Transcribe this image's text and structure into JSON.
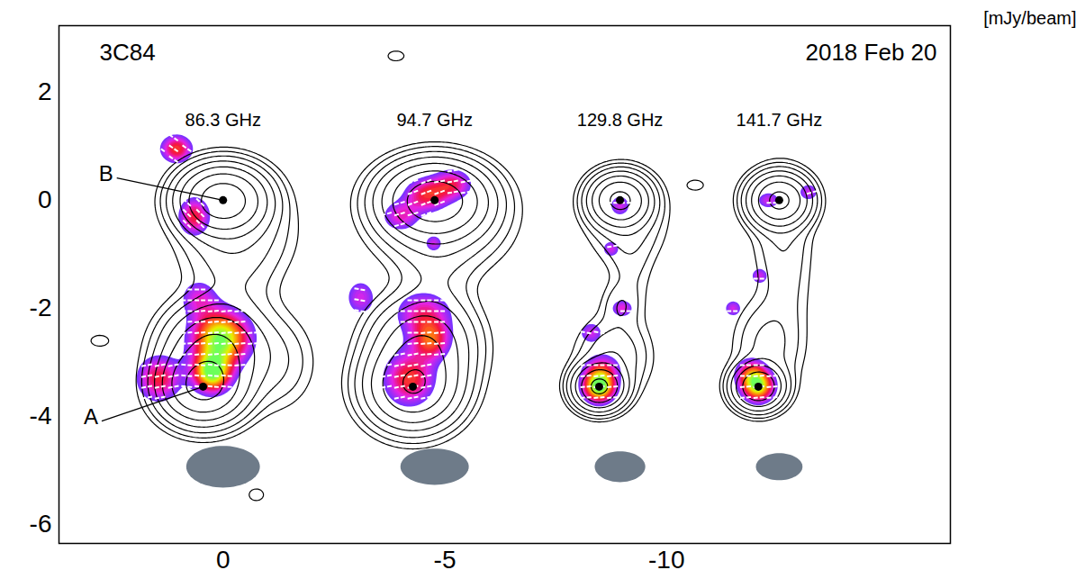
{
  "chart_data": {
    "type": "contour",
    "title": "3C84",
    "subtitle": "2018 Feb 20",
    "unit_label": "[mJy/beam]",
    "xlim": [
      3.7,
      -16.4
    ],
    "ylim": [
      -6.35,
      3.23
    ],
    "xticks": [
      0,
      -5,
      -10
    ],
    "yticks": [
      2,
      0,
      -2,
      -4,
      -6
    ],
    "contour_levels": [
      4,
      8,
      16,
      32,
      64,
      128,
      256
    ],
    "color_range": [
      0.2,
      1.0
    ],
    "annotations": [
      {
        "text": "B",
        "x": 2.64,
        "y": 0.48,
        "to": [
          0,
          0
        ]
      },
      {
        "text": "A",
        "x": 2.98,
        "y": -4.02,
        "to": [
          0.45,
          -3.45
        ]
      }
    ],
    "panels": [
      {
        "label": "86.3 GHz",
        "A": [
          0.45,
          -3.45
        ],
        "B": [
          0,
          0
        ],
        "beam": {
          "x": 0,
          "y": -4.93,
          "major": 1.66,
          "minor": 0.77
        },
        "components": [
          {
            "x": 0,
            "y": 0,
            "peak": 400,
            "sx": 0.5,
            "sy": 0.32
          },
          {
            "x": 0.45,
            "y": -3.45,
            "peak": 300,
            "sx": 0.5,
            "sy": 0.35
          },
          {
            "x": 0.2,
            "y": -2.8,
            "peak": 150,
            "sx": 0.6,
            "sy": 0.45
          },
          {
            "x": -0.2,
            "y": -1.5,
            "peak": 12,
            "sx": 0.6,
            "sy": 0.9
          },
          {
            "x": -1.2,
            "y": -3.0,
            "peak": 15,
            "sx": 0.5,
            "sy": 0.5
          },
          {
            "x": -0.3,
            "y": -0.6,
            "peak": 25,
            "sx": 0.7,
            "sy": 0.5
          },
          {
            "x": 2.78,
            "y": -2.6,
            "peak": 6,
            "sx": 0.22,
            "sy": 0.11
          },
          {
            "x": -0.75,
            "y": -5.45,
            "peak": 6,
            "sx": 0.18,
            "sy": 0.12
          }
        ],
        "polarization": [
          {
            "x": 1.05,
            "y": 0.95,
            "peak": 0.6,
            "sx": 0.25,
            "sy": 0.18,
            "evpa": -35
          },
          {
            "x": 0.65,
            "y": -0.3,
            "peak": 0.55,
            "sx": 0.25,
            "sy": 0.25,
            "evpa": -45
          },
          {
            "x": 0.05,
            "y": -2.55,
            "peak": 1.0,
            "sx": 0.45,
            "sy": 0.35,
            "evpa": 5
          },
          {
            "x": 0.25,
            "y": -3.2,
            "peak": 0.95,
            "sx": 0.3,
            "sy": 0.25,
            "evpa": -5
          },
          {
            "x": 1.45,
            "y": -3.3,
            "peak": 0.55,
            "sx": 0.35,
            "sy": 0.3,
            "evpa": 10
          },
          {
            "x": 0.55,
            "y": -1.8,
            "peak": 0.35,
            "sx": 0.3,
            "sy": 0.25,
            "evpa": 0
          }
        ]
      },
      {
        "label": "94.7 GHz",
        "A": [
          -4.28,
          -3.45
        ],
        "B": [
          -4.77,
          0
        ],
        "beam": {
          "x": -4.77,
          "y": -4.93,
          "major": 1.54,
          "minor": 0.67
        },
        "components": [
          {
            "x": -4.77,
            "y": 0,
            "peak": 400,
            "sx": 0.6,
            "sy": 0.35
          },
          {
            "x": -4.28,
            "y": -3.45,
            "peak": 250,
            "sx": 0.55,
            "sy": 0.4
          },
          {
            "x": -4.5,
            "y": -2.7,
            "peak": 120,
            "sx": 0.6,
            "sy": 0.45
          },
          {
            "x": -4.8,
            "y": -1.5,
            "peak": 12,
            "sx": 0.5,
            "sy": 0.8
          },
          {
            "x": -4.9,
            "y": -0.4,
            "peak": 40,
            "sx": 0.8,
            "sy": 0.5
          },
          {
            "x": -3.9,
            "y": 2.67,
            "peak": 6,
            "sx": 0.2,
            "sy": 0.1
          }
        ],
        "polarization": [
          {
            "x": -4.0,
            "y": -0.3,
            "peak": 0.4,
            "sx": 0.3,
            "sy": 0.2,
            "evpa": 15
          },
          {
            "x": -4.6,
            "y": 0.1,
            "peak": 0.55,
            "sx": 0.35,
            "sy": 0.22,
            "evpa": 20
          },
          {
            "x": -5.2,
            "y": 0.3,
            "peak": 0.45,
            "sx": 0.3,
            "sy": 0.2,
            "evpa": 10
          },
          {
            "x": -4.75,
            "y": -0.8,
            "peak": 0.35,
            "sx": 0.15,
            "sy": 0.12,
            "evpa": 0
          },
          {
            "x": -4.52,
            "y": -2.1,
            "peak": 0.45,
            "sx": 0.45,
            "sy": 0.3,
            "evpa": 0
          },
          {
            "x": -4.7,
            "y": -2.6,
            "peak": 0.55,
            "sx": 0.3,
            "sy": 0.25,
            "evpa": 5
          },
          {
            "x": -4.2,
            "y": -3.3,
            "peak": 0.6,
            "sx": 0.4,
            "sy": 0.35,
            "evpa": 10
          },
          {
            "x": -3.1,
            "y": -1.8,
            "peak": 0.35,
            "sx": 0.25,
            "sy": 0.25,
            "evpa": -10
          }
        ]
      },
      {
        "label": "129.8 GHz",
        "A": [
          -8.48,
          -3.45
        ],
        "B": [
          -8.95,
          0
        ],
        "beam": {
          "x": -8.95,
          "y": -4.93,
          "major": 1.14,
          "minor": 0.57
        },
        "components": [
          {
            "x": -8.95,
            "y": 0,
            "peak": 300,
            "sx": 0.35,
            "sy": 0.25
          },
          {
            "x": -9.1,
            "y": -0.4,
            "peak": 20,
            "sx": 0.5,
            "sy": 0.45
          },
          {
            "x": -8.48,
            "y": -3.45,
            "peak": 300,
            "sx": 0.3,
            "sy": 0.22
          },
          {
            "x": -8.8,
            "y": -2.9,
            "peak": 30,
            "sx": 0.45,
            "sy": 0.4
          },
          {
            "x": -8.95,
            "y": -1.95,
            "peak": 12,
            "sx": 0.25,
            "sy": 0.25
          },
          {
            "x": -9.2,
            "y": -1.2,
            "peak": 8,
            "sx": 0.3,
            "sy": 0.7
          }
        ],
        "polarization": [
          {
            "x": -8.95,
            "y": -0.1,
            "peak": 0.35,
            "sx": 0.18,
            "sy": 0.15,
            "evpa": 0
          },
          {
            "x": -8.75,
            "y": -0.9,
            "peak": 0.35,
            "sx": 0.15,
            "sy": 0.12,
            "evpa": 10
          },
          {
            "x": -9.0,
            "y": -2.0,
            "peak": 0.4,
            "sx": 0.18,
            "sy": 0.12,
            "evpa": 0
          },
          {
            "x": -8.3,
            "y": -2.45,
            "peak": 0.35,
            "sx": 0.2,
            "sy": 0.15,
            "evpa": -10
          },
          {
            "x": -8.48,
            "y": -3.45,
            "peak": 1.05,
            "sx": 0.25,
            "sy": 0.2,
            "evpa": 5
          },
          {
            "x": -8.55,
            "y": -3.1,
            "peak": 0.4,
            "sx": 0.3,
            "sy": 0.2,
            "evpa": 0
          }
        ]
      },
      {
        "label": "141.7 GHz",
        "A": [
          -12.07,
          -3.45
        ],
        "B": [
          -12.54,
          0
        ],
        "beam": {
          "x": -12.54,
          "y": -4.93,
          "major": 1.05,
          "minor": 0.5
        },
        "components": [
          {
            "x": -12.54,
            "y": 0,
            "peak": 300,
            "sx": 0.35,
            "sy": 0.25
          },
          {
            "x": -12.6,
            "y": -0.5,
            "peak": 15,
            "sx": 0.4,
            "sy": 0.6
          },
          {
            "x": -12.07,
            "y": -3.45,
            "peak": 250,
            "sx": 0.3,
            "sy": 0.22
          },
          {
            "x": -12.3,
            "y": -2.7,
            "peak": 20,
            "sx": 0.45,
            "sy": 0.5
          },
          {
            "x": -12.7,
            "y": -1.6,
            "peak": 8,
            "sx": 0.35,
            "sy": 0.6
          },
          {
            "x": -10.65,
            "y": 0.28,
            "peak": 6,
            "sx": 0.2,
            "sy": 0.1
          }
        ],
        "polarization": [
          {
            "x": -12.3,
            "y": 0.0,
            "peak": 0.35,
            "sx": 0.2,
            "sy": 0.12,
            "evpa": 0
          },
          {
            "x": -13.2,
            "y": 0.15,
            "peak": 0.35,
            "sx": 0.17,
            "sy": 0.12,
            "evpa": 15
          },
          {
            "x": -12.1,
            "y": -1.4,
            "peak": 0.35,
            "sx": 0.15,
            "sy": 0.12,
            "evpa": 0
          },
          {
            "x": -11.5,
            "y": -2.0,
            "peak": 0.35,
            "sx": 0.15,
            "sy": 0.12,
            "evpa": 0
          },
          {
            "x": -12.07,
            "y": -3.45,
            "peak": 0.85,
            "sx": 0.25,
            "sy": 0.2,
            "evpa": 5
          },
          {
            "x": -11.9,
            "y": -3.2,
            "peak": 0.5,
            "sx": 0.25,
            "sy": 0.2,
            "evpa": 0
          }
        ]
      }
    ]
  }
}
